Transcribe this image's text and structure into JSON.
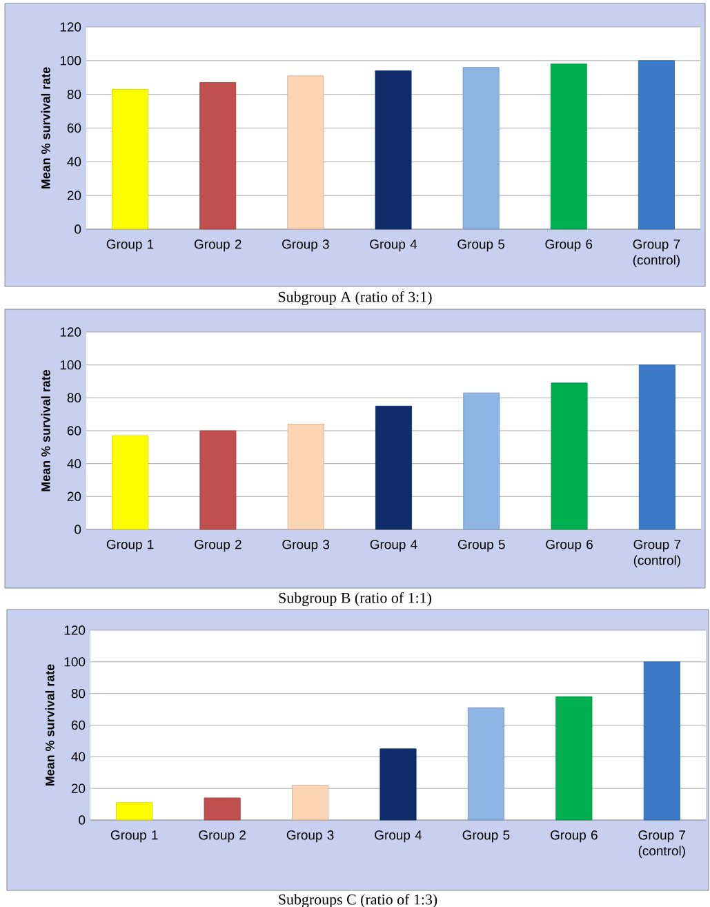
{
  "chart_data": [
    {
      "type": "bar",
      "categories": [
        "Group 1",
        "Group 2",
        "Group 3",
        "Group 4",
        "Group 5",
        "Group 6",
        "Group 7 (control)"
      ],
      "values": [
        83,
        87,
        91,
        94,
        96,
        98,
        100
      ],
      "colors": [
        "#ffff00",
        "#c0504d",
        "#fcd5b5",
        "#0f2d6b",
        "#8db4e2",
        "#00b050",
        "#3a7ac8"
      ],
      "ylabel": "Mean % survival rate",
      "ylim": [
        0,
        120
      ],
      "yticks": [
        0,
        20,
        40,
        60,
        80,
        100,
        120
      ],
      "grid": "y",
      "annotations": [
        "Subgroup A (ratio of 3:1)"
      ]
    },
    {
      "type": "bar",
      "categories": [
        "Group 1",
        "Group 2",
        "Group 3",
        "Group 4",
        "Group 5",
        "Group 6",
        "Group 7 (control)"
      ],
      "values": [
        57,
        60,
        64,
        75,
        83,
        89,
        100
      ],
      "colors": [
        "#ffff00",
        "#c0504d",
        "#fcd5b5",
        "#0f2d6b",
        "#8db4e2",
        "#00b050",
        "#3a7ac8"
      ],
      "ylabel": "Mean % survival rate",
      "ylim": [
        0,
        120
      ],
      "yticks": [
        0,
        20,
        40,
        60,
        80,
        100,
        120
      ],
      "grid": "y",
      "annotations": [
        "Subgroup B (ratio of 1:1)"
      ]
    },
    {
      "type": "bar",
      "categories": [
        "Group 1",
        "Group 2",
        "Group 3",
        "Group 4",
        "Group 5",
        "Group 6",
        "Group 7 (control)"
      ],
      "values": [
        11,
        14,
        22,
        45,
        71,
        78,
        100
      ],
      "colors": [
        "#ffff00",
        "#c0504d",
        "#fcd5b5",
        "#0f2d6b",
        "#8db4e2",
        "#00b050",
        "#3a7ac8"
      ],
      "ylabel": "Mean % survival rate",
      "ylim": [
        0,
        120
      ],
      "yticks": [
        0,
        20,
        40,
        60,
        80,
        100,
        120
      ],
      "grid": "y",
      "annotations": [
        "Subgroups C (ratio of 1:3)"
      ]
    }
  ]
}
